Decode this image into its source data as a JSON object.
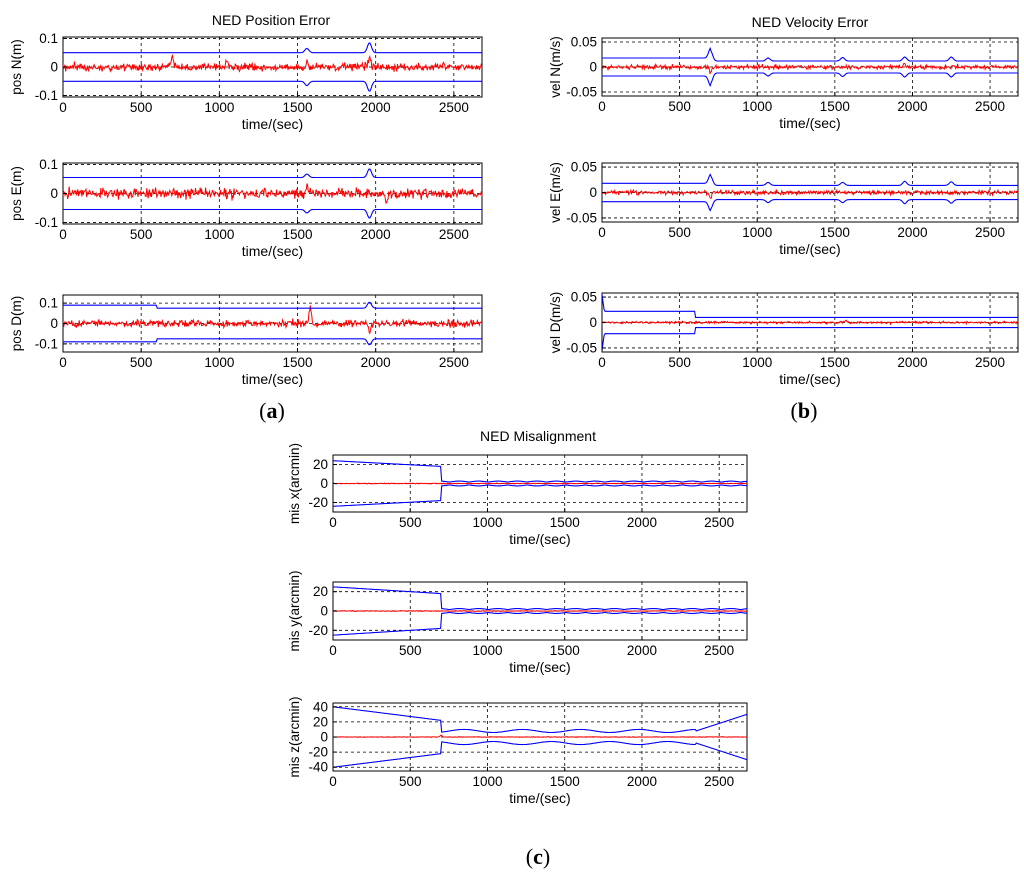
{
  "colors": {
    "bound": "#0000ff",
    "error": "#ff0000",
    "axis": "#000000",
    "grid": "#000000"
  },
  "panel_labels": {
    "a": {
      "open": "(",
      "letter": "a",
      "close": ")"
    },
    "b": {
      "open": "(",
      "letter": "b",
      "close": ")"
    },
    "c": {
      "open": "(",
      "letter": "c",
      "close": ")"
    }
  },
  "chart_data": [
    {
      "id": "a",
      "type": "line",
      "title": "NED Position Error",
      "xlim": [
        0,
        2680
      ],
      "xticks": [
        0,
        500,
        1000,
        1500,
        2000,
        2500
      ],
      "subplots": [
        {
          "ylabel": "pos N(m)",
          "xlabel": "time/(sec)",
          "ylim": [
            -0.105,
            0.105
          ],
          "yticks": [
            -0.1,
            0,
            0.1
          ],
          "ytick_labels": [
            "-0.1",
            "0",
            "0.1"
          ],
          "series": [
            {
              "name": "error",
              "kind": "noise",
              "std": 0.01,
              "spikes": [
                [
                  700,
                  0.04
                ],
                [
                  1050,
                  0.035
                ],
                [
                  1560,
                  0.03
                ],
                [
                  1960,
                  0.045
                ]
              ]
            },
            {
              "name": "bound",
              "kind": "bound",
              "level": 0.05,
              "bumps": [
                [
                  1560,
                  0.015
                ],
                [
                  1960,
                  0.035
                ]
              ]
            }
          ]
        },
        {
          "ylabel": "pos E(m)",
          "xlabel": "time/(sec)",
          "ylim": [
            -0.105,
            0.105
          ],
          "yticks": [
            -0.1,
            0,
            0.1
          ],
          "ytick_labels": [
            "-0.1",
            "0",
            "0.1"
          ],
          "series": [
            {
              "name": "error",
              "kind": "noise",
              "std": 0.012,
              "spikes": [
                [
                  1560,
                  0.035
                ],
                [
                  2070,
                  -0.045
                ]
              ]
            },
            {
              "name": "bound",
              "kind": "bound",
              "level": 0.055,
              "bumps": [
                [
                  1560,
                  0.012
                ],
                [
                  1960,
                  0.03
                ]
              ]
            }
          ]
        },
        {
          "ylabel": "pos D(m)",
          "xlabel": "time/(sec)",
          "ylim": [
            -0.14,
            0.14
          ],
          "yticks": [
            -0.1,
            0,
            0.1
          ],
          "ytick_labels": [
            "-0.1",
            "0",
            "0.1"
          ],
          "series": [
            {
              "name": "error",
              "kind": "noise",
              "std": 0.012,
              "spikes": [
                [
                  1580,
                  0.11
                ],
                [
                  1960,
                  -0.05
                ]
              ]
            },
            {
              "name": "bound",
              "kind": "bound",
              "segments": [
                [
                  0,
                  600,
                  0.09
                ],
                [
                  600,
                  2680,
                  0.075
                ]
              ],
              "bumps": [
                [
                  1960,
                  0.03
                ]
              ]
            }
          ]
        }
      ]
    },
    {
      "id": "b",
      "type": "line",
      "title": "NED Velocity Error",
      "xlim": [
        0,
        2680
      ],
      "xticks": [
        0,
        500,
        1000,
        1500,
        2000,
        2500
      ],
      "subplots": [
        {
          "ylabel": "vel N(m/s)",
          "xlabel": "time/(sec)",
          "ylim": [
            -0.058,
            0.058
          ],
          "yticks": [
            -0.05,
            0,
            0.05
          ],
          "ytick_labels": [
            "-0.05",
            "0",
            "0.05"
          ],
          "series": [
            {
              "name": "error",
              "kind": "noise",
              "std": 0.003,
              "spikes": [
                [
                  700,
                  -0.015
                ],
                [
                  1950,
                  0.01
                ]
              ]
            },
            {
              "name": "bound",
              "kind": "bound",
              "segments": [
                [
                  0,
                  700,
                  0.018
                ],
                [
                  700,
                  2680,
                  0.012
                ]
              ],
              "bumps": [
                [
                  700,
                  0.02
                ],
                [
                  1070,
                  0.006
                ],
                [
                  1550,
                  0.007
                ],
                [
                  1950,
                  0.008
                ],
                [
                  2250,
                  0.008
                ]
              ]
            }
          ]
        },
        {
          "ylabel": "vel E(m/s)",
          "xlabel": "time/(sec)",
          "ylim": [
            -0.058,
            0.058
          ],
          "yticks": [
            -0.05,
            0,
            0.05
          ],
          "ytick_labels": [
            "-0.05",
            "0",
            "0.05"
          ],
          "series": [
            {
              "name": "error",
              "kind": "noise",
              "std": 0.003,
              "spikes": [
                [
                  700,
                  -0.012
                ]
              ]
            },
            {
              "name": "bound",
              "kind": "bound",
              "segments": [
                [
                  0,
                  700,
                  0.018
                ],
                [
                  700,
                  2680,
                  0.014
                ]
              ],
              "bumps": [
                [
                  700,
                  0.018
                ],
                [
                  1070,
                  0.006
                ],
                [
                  1550,
                  0.006
                ],
                [
                  1950,
                  0.008
                ],
                [
                  2250,
                  0.007
                ]
              ]
            }
          ]
        },
        {
          "ylabel": "vel D(m/s)",
          "xlabel": "time/(sec)",
          "ylim": [
            -0.058,
            0.058
          ],
          "yticks": [
            -0.05,
            0,
            0.05
          ],
          "ytick_labels": [
            "-0.05",
            "0",
            "0.05"
          ],
          "series": [
            {
              "name": "error",
              "kind": "noise",
              "std": 0.0015,
              "spikes": [
                [
                  1570,
                  0.006
                ]
              ]
            },
            {
              "name": "bound",
              "kind": "bound",
              "segments": [
                [
                  0,
                  600,
                  0.022
                ],
                [
                  600,
                  2680,
                  0.01
                ]
              ],
              "start_spike": 0.055
            }
          ]
        }
      ]
    },
    {
      "id": "c",
      "type": "line",
      "title": "NED Misalignment",
      "xlim": [
        0,
        2680
      ],
      "xticks": [
        0,
        500,
        1000,
        1500,
        2000,
        2500
      ],
      "subplots": [
        {
          "ylabel": "mis x(arcmin)",
          "xlabel": "time/(sec)",
          "ylim": [
            -30,
            30
          ],
          "yticks": [
            -20,
            0,
            20
          ],
          "ytick_labels": [
            "-20",
            "0",
            "20"
          ],
          "series": [
            {
              "name": "error",
              "kind": "noise",
              "std": 0.3,
              "spikes": []
            },
            {
              "name": "bound",
              "kind": "converge",
              "start": 24,
              "before": 18,
              "t_switch": 700,
              "after": 2.5
            }
          ]
        },
        {
          "ylabel": "mis y(arcmin)",
          "xlabel": "time/(sec)",
          "ylim": [
            -30,
            30
          ],
          "yticks": [
            -20,
            0,
            20
          ],
          "ytick_labels": [
            "-20",
            "0",
            "20"
          ],
          "series": [
            {
              "name": "error",
              "kind": "noise",
              "std": 0.3,
              "spikes": []
            },
            {
              "name": "bound",
              "kind": "converge",
              "start": 25,
              "before": 18,
              "t_switch": 700,
              "after": 2.5
            }
          ]
        },
        {
          "ylabel": "mis z(arcmin)",
          "xlabel": "time/(sec)",
          "ylim": [
            -45,
            45
          ],
          "yticks": [
            -40,
            -20,
            0,
            20,
            40
          ],
          "ytick_labels": [
            "-40",
            "-20",
            "0",
            "20",
            "40"
          ],
          "series": [
            {
              "name": "error",
              "kind": "noise",
              "std": 0.3,
              "spikes": [
                [
                  700,
                  3
                ]
              ]
            },
            {
              "name": "bound",
              "kind": "zbound"
            }
          ]
        }
      ]
    }
  ]
}
